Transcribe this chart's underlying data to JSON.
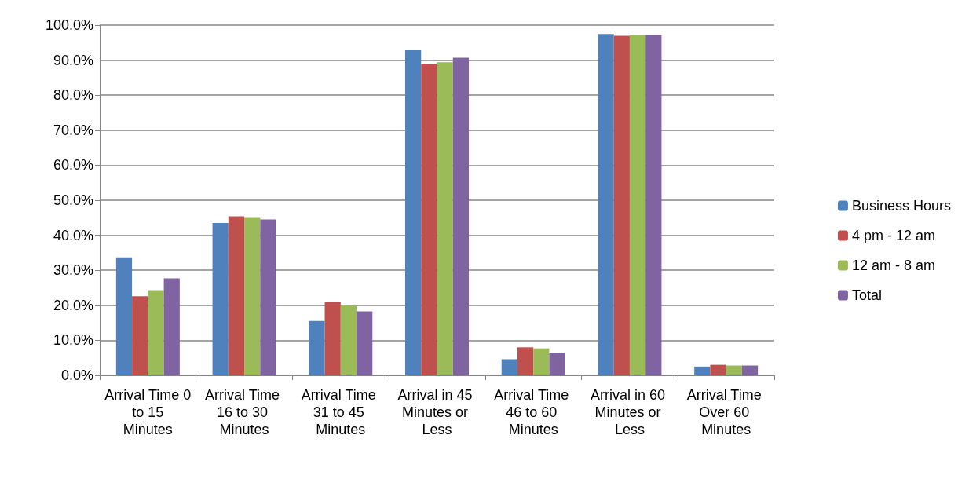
{
  "chart_data": {
    "type": "bar",
    "categories": [
      "Arrival Time 0 to 15 Minutes",
      "Arrival Time 16 to 30 Minutes",
      "Arrival Time 31 to 45 Minutes",
      "Arrival in 45 Minutes or Less",
      "Arrival Time 46 to 60 Minutes",
      "Arrival in 60 Minutes or Less",
      "Arrival Time Over 60 Minutes"
    ],
    "series": [
      {
        "name": "Business Hours",
        "color": "#4f81bd",
        "values": [
          33.7,
          43.5,
          15.5,
          92.8,
          4.6,
          97.5,
          2.5
        ]
      },
      {
        "name": "4 pm - 12 am",
        "color": "#c0504d",
        "values": [
          22.6,
          45.4,
          21.0,
          89.0,
          8.0,
          97.0,
          3.0
        ]
      },
      {
        "name": "12 am - 8 am",
        "color": "#9bbb59",
        "values": [
          24.3,
          45.2,
          20.0,
          89.4,
          7.7,
          97.2,
          2.8
        ]
      },
      {
        "name": "Total",
        "color": "#8064a2",
        "values": [
          27.7,
          44.5,
          18.3,
          90.7,
          6.5,
          97.2,
          2.8
        ]
      }
    ],
    "ylim": [
      0,
      100
    ],
    "yticks": [
      {
        "value": 0,
        "label": "0.0%"
      },
      {
        "value": 10,
        "label": "10.0%"
      },
      {
        "value": 20,
        "label": "20.0%"
      },
      {
        "value": 30,
        "label": "30.0%"
      },
      {
        "value": 40,
        "label": "40.0%"
      },
      {
        "value": 50,
        "label": "50.0%"
      },
      {
        "value": 60,
        "label": "60.0%"
      },
      {
        "value": 70,
        "label": "70.0%"
      },
      {
        "value": 80,
        "label": "80.0%"
      },
      {
        "value": 90,
        "label": "90.0%"
      },
      {
        "value": 100,
        "label": "100.0%"
      }
    ],
    "grid": "y",
    "legend": "right"
  }
}
